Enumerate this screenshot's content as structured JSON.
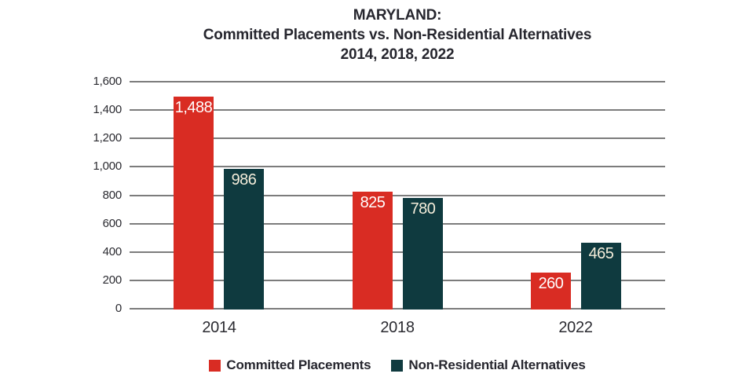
{
  "title": {
    "line1": "MARYLAND:",
    "line2": "Committed Placements vs. Non-Residential Alternatives",
    "line3": "2014, 2018, 2022"
  },
  "chart_data": {
    "type": "bar",
    "title": "MARYLAND: Committed Placements vs. Non-Residential Alternatives 2014, 2018, 2022",
    "categories": [
      "2014",
      "2018",
      "2022"
    ],
    "series": [
      {
        "name": "Committed Placements",
        "color": "#d92c23",
        "label_color": "#ffffff",
        "values": [
          1488,
          825,
          260
        ],
        "value_labels": [
          "1,488",
          "825",
          "260"
        ]
      },
      {
        "name": "Non-Residential Alternatives",
        "color": "#0f3a3f",
        "label_color": "#f4edda",
        "values": [
          986,
          780,
          465
        ],
        "value_labels": [
          "986",
          "780",
          "465"
        ]
      }
    ],
    "ylim": [
      0,
      1600
    ],
    "ytick_interval": 200,
    "yticks": [
      {
        "value": 1600,
        "label": "1,600"
      },
      {
        "value": 1400,
        "label": "1,400"
      },
      {
        "value": 1200,
        "label": "1,200"
      },
      {
        "value": 1000,
        "label": "1,000"
      },
      {
        "value": 800,
        "label": "800"
      },
      {
        "value": 600,
        "label": "600"
      },
      {
        "value": 400,
        "label": "400"
      },
      {
        "value": 200,
        "label": "200"
      },
      {
        "value": 0,
        "label": "0"
      }
    ],
    "grid": true,
    "legend_position": "bottom",
    "value_labels_position": "inside-top"
  },
  "colors": {
    "background": "#ffffff",
    "gridline": "#7c7c7c",
    "text": "#26262e"
  }
}
